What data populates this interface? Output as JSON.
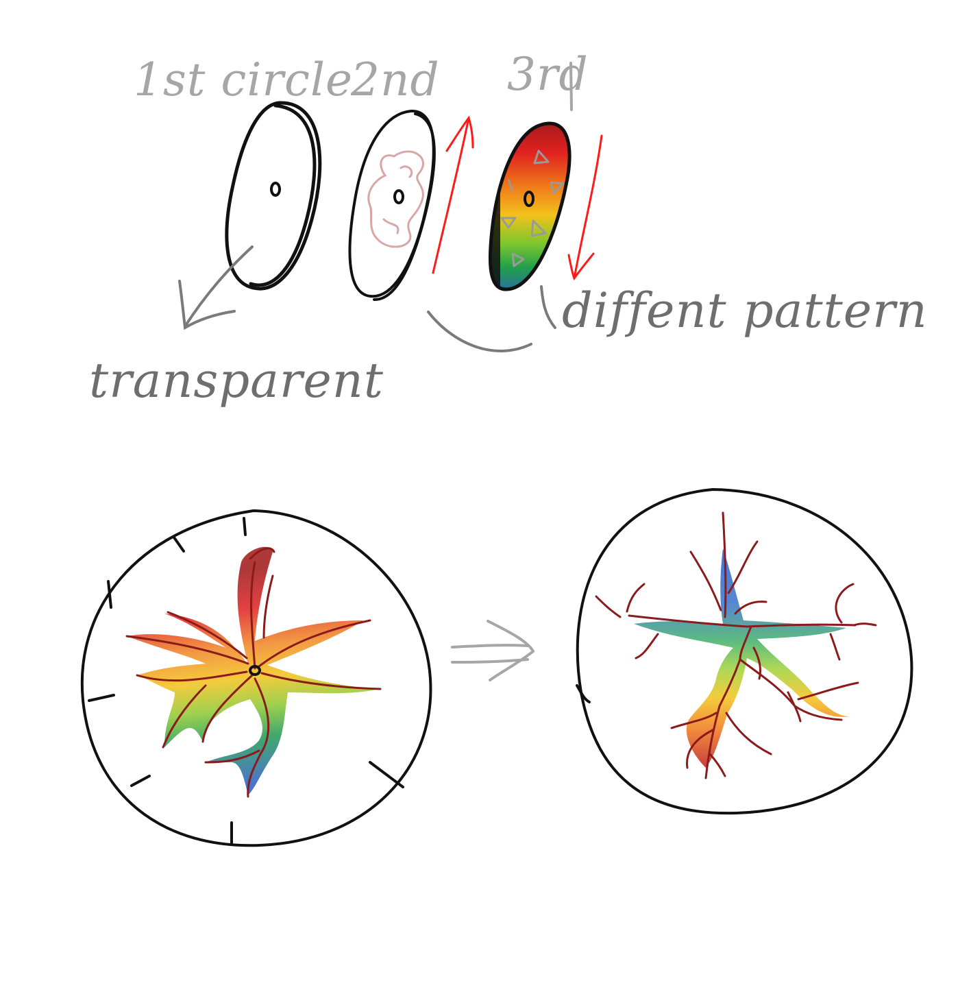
{
  "labels": {
    "first": "1st circle",
    "second": "2nd",
    "third": "3rd",
    "transparent": "transparent",
    "different": "diffent pattern"
  },
  "colors": {
    "ink": "#111111",
    "annotation_grey": "#7a7a7a",
    "arrow_red": "#ff1a1a",
    "vein_red": "#8b1a1a",
    "pattern_pink": "#d9a6a6",
    "rainbow": [
      "#8b1a1a",
      "#e02020",
      "#f07a1a",
      "#f2c21a",
      "#7bc62d",
      "#22a04a",
      "#2a5cc4"
    ]
  },
  "icons": {
    "arrow_up": "up-arrow-icon",
    "arrow_down": "down-arrow-icon",
    "pointer_arrow": "pointer-arrow-icon",
    "implies": "implies-arrow-icon"
  }
}
